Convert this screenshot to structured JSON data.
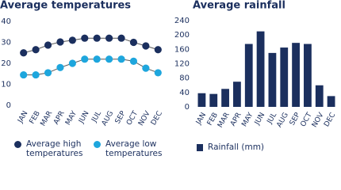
{
  "chart_data": [
    {
      "type": "line",
      "title": "Average temperatures",
      "categories": [
        "JAN",
        "FEB",
        "MAR",
        "APR",
        "MAY",
        "JUN",
        "JUL",
        "AUG",
        "SEP",
        "OCT",
        "NOV",
        "DEC"
      ],
      "series": [
        {
          "name": "Average high temperatures",
          "color": "#1b2f5e",
          "values": [
            25,
            26.5,
            28.7,
            30.2,
            31,
            32,
            32,
            32,
            32,
            30,
            28.3,
            26.5
          ]
        },
        {
          "name": "Average low temperatures",
          "color": "#1ea6dd",
          "values": [
            14.5,
            14.5,
            15.5,
            18,
            20,
            22,
            22,
            22,
            22,
            21,
            17.7,
            15.5
          ]
        }
      ],
      "ylim": [
        0,
        40
      ],
      "yticks": [
        0,
        10,
        20,
        30,
        40
      ],
      "grid": false
    },
    {
      "type": "bar",
      "title": "Average rainfall",
      "categories": [
        "JAN",
        "FEB",
        "MAR",
        "APR",
        "MAY",
        "JUN",
        "JUL",
        "AUG",
        "SEP",
        "OCT",
        "NOV",
        "DEC"
      ],
      "series": [
        {
          "name": "Rainfall (mm)",
          "color": "#1b2f5e",
          "values": [
            38,
            36,
            50,
            70,
            175,
            210,
            150,
            165,
            178,
            175,
            60,
            30
          ]
        }
      ],
      "ylim": [
        0,
        240
      ],
      "yticks": [
        0,
        40,
        80,
        120,
        160,
        200,
        240
      ],
      "grid": false
    }
  ]
}
